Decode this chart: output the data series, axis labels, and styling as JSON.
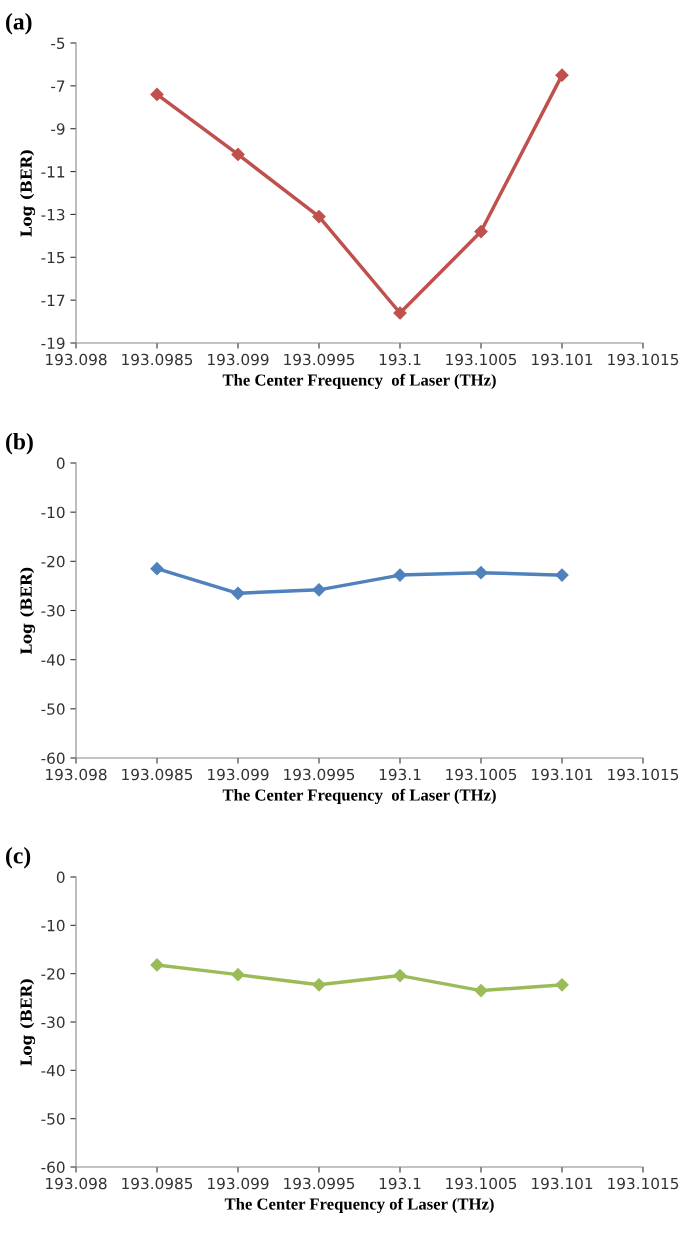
{
  "chart_data": [
    {
      "type": "line",
      "title": "(a)",
      "xlabel": "The Center Frequency  of Laser (THz)",
      "ylabel": "Log (BER)",
      "x": [
        193.0985,
        193.099,
        193.0995,
        193.1,
        193.1005,
        193.101
      ],
      "series": [
        {
          "color": "#c0504d",
          "values": [
            -7.4,
            -10.2,
            -13.1,
            -17.6,
            -13.8,
            -6.5
          ]
        }
      ],
      "xlim": [
        193.098,
        193.1015
      ],
      "xticks": [
        193.098,
        193.0985,
        193.099,
        193.0995,
        193.1,
        193.1005,
        193.101,
        193.1015
      ],
      "ylim": [
        -19,
        -5
      ],
      "yticks": [
        -19,
        -17,
        -15,
        -13,
        -11,
        -9,
        -7,
        -5
      ],
      "marker": "diamond",
      "grid": false,
      "legend": false
    },
    {
      "type": "line",
      "title": "(b)",
      "xlabel": "The Center Frequency  of Laser (THz)",
      "ylabel": "Log (BER)",
      "x": [
        193.0985,
        193.099,
        193.0995,
        193.1,
        193.1005,
        193.101
      ],
      "series": [
        {
          "color": "#4f81bd",
          "values": [
            -21.5,
            -26.5,
            -25.8,
            -22.8,
            -22.3,
            -22.8
          ]
        }
      ],
      "xlim": [
        193.098,
        193.1015
      ],
      "xticks": [
        193.098,
        193.0985,
        193.099,
        193.0995,
        193.1,
        193.1005,
        193.101,
        193.1015
      ],
      "ylim": [
        -60,
        0
      ],
      "yticks": [
        -60,
        -50,
        -40,
        -30,
        -20,
        -10,
        0
      ],
      "marker": "diamond",
      "grid": false,
      "legend": false
    },
    {
      "type": "line",
      "title": "(c)",
      "xlabel": "The Center Frequency of Laser (THz)",
      "ylabel": "Log (BER)",
      "x": [
        193.0985,
        193.099,
        193.0995,
        193.1,
        193.1005,
        193.101
      ],
      "series": [
        {
          "color": "#9bbb59",
          "values": [
            -18.2,
            -20.2,
            -22.3,
            -20.4,
            -23.5,
            -22.3
          ]
        }
      ],
      "xlim": [
        193.098,
        193.1015
      ],
      "xticks": [
        193.098,
        193.0985,
        193.099,
        193.0995,
        193.1,
        193.1005,
        193.101,
        193.1015
      ],
      "ylim": [
        -60,
        0
      ],
      "yticks": [
        -60,
        -50,
        -40,
        -30,
        -20,
        -10,
        0
      ],
      "marker": "diamond",
      "grid": false,
      "legend": false
    }
  ]
}
